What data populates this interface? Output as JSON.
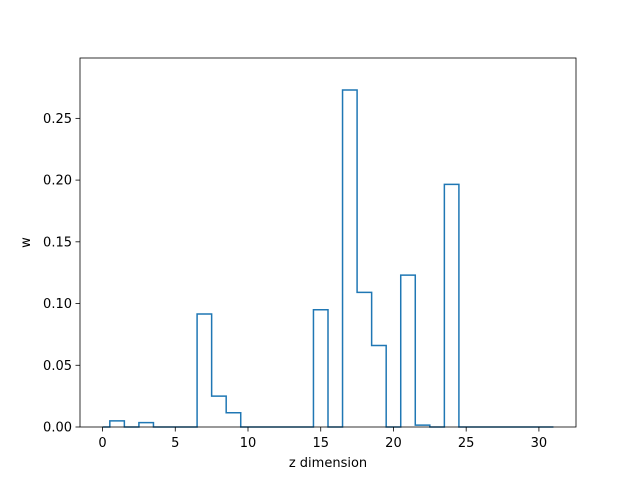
{
  "chart_data": {
    "type": "step",
    "xlabel": "z dimension",
    "ylabel": "w",
    "xlim": [
      -1.55,
      32.55
    ],
    "ylim": [
      0,
      0.2989
    ],
    "xticks": [
      0,
      5,
      10,
      15,
      20,
      25,
      30
    ],
    "xtick_labels": [
      "0",
      "5",
      "10",
      "15",
      "20",
      "25",
      "30"
    ],
    "yticks": [
      0.0,
      0.05,
      0.1,
      0.15,
      0.2,
      0.25
    ],
    "ytick_labels": [
      "0.00",
      "0.05",
      "0.10",
      "0.15",
      "0.20",
      "0.25"
    ],
    "grid": false,
    "series": [
      {
        "color": "#1f77b4",
        "x": [
          0,
          1,
          2,
          3,
          4,
          5,
          6,
          7,
          8,
          9,
          10,
          11,
          12,
          13,
          14,
          15,
          16,
          17,
          18,
          19,
          20,
          21,
          22,
          23,
          24,
          25,
          26,
          27,
          28,
          29,
          30,
          31
        ],
        "values": [
          0.0,
          0.005,
          0.0,
          0.0035,
          0.0,
          0.0,
          0.0,
          0.0915,
          0.025,
          0.0115,
          0.0,
          0.0,
          0.0,
          0.0,
          0.0,
          0.095,
          0.0,
          0.273,
          0.109,
          0.066,
          0.0,
          0.123,
          0.0015,
          0.0,
          0.1965,
          0.0,
          0.0,
          0.0,
          0.0,
          0.0,
          0.0,
          0.0
        ]
      }
    ]
  }
}
